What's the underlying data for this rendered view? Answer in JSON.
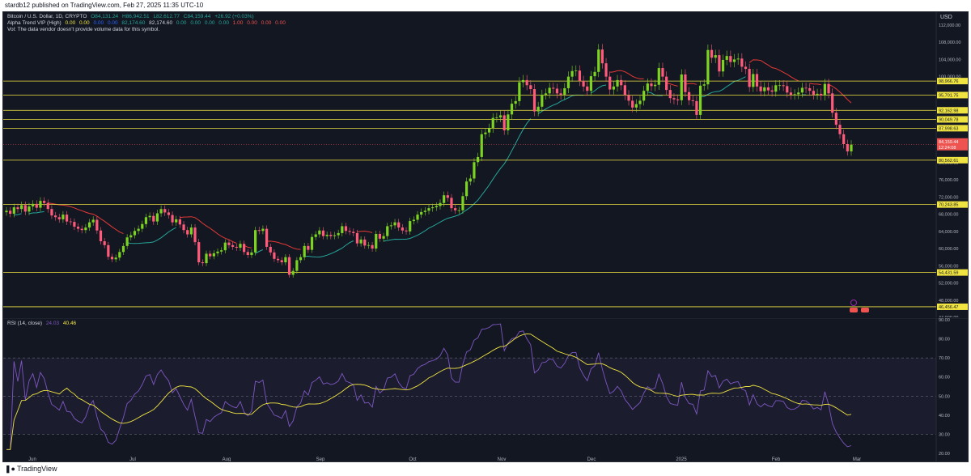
{
  "header": {
    "published_text": "stardb12 published on TradingView.com, Feb 27, 2025 11:35 UTC-10"
  },
  "legend": {
    "symbol": "Bitcoin / U.S. Dollar, 1D, CRYPTO",
    "ohlc": [
      "O84,131.24",
      "H86,942.51",
      "L82,612.77",
      "C84,159.44",
      "+26.92 (+0.03%)"
    ],
    "alpha_name": "Alpha Trend VIP (High)",
    "alpha_values": [
      "0.00",
      "0.00",
      "0.00",
      "0.00",
      "82,174.60",
      "82,174.60",
      "0.00",
      "0.00",
      "0.00",
      "0.00",
      "1.00",
      "0.00",
      "0.00",
      "0.00"
    ],
    "vol_text": "Vol: The data vendor doesn't provide volume data for this symbol.",
    "rsi_name": "RSI (14, close)",
    "rsi_value": "24.03",
    "rsi_ma_value": "40.46"
  },
  "currency_badge": "USD",
  "colors": {
    "background": "#131722",
    "up": "#26a69a",
    "down": "#ef5350",
    "up_bright": "#7cd321",
    "level_line": "#f0e442",
    "trend_up": "#26a69a",
    "trend_down": "#e53935",
    "rsi_line": "#7e57c2",
    "rsi_ma": "#f0e442"
  },
  "footer": {
    "logo_text": "TradingView",
    "logo_icon": "tradingview-logo-icon"
  },
  "chart_data": [
    {
      "type": "candlestick",
      "title": "Bitcoin / U.S. Dollar, 1D, CRYPTO",
      "ylim": [
        44000,
        115000
      ],
      "y_ticks": [
        "112,000.00",
        "108,000.00",
        "104,000.00",
        "100,000.00",
        "96,000.00",
        "92,000.00",
        "88,000.00",
        "84,000.00",
        "80,000.00",
        "76,000.00",
        "72,000.00",
        "68,000.00",
        "64,000.00",
        "60,000.00",
        "56,000.00",
        "52,000.00",
        "48,000.00",
        "44,000.00"
      ],
      "x_labels": [
        "Jun",
        "Jul",
        "Aug",
        "Sep",
        "Oct",
        "Nov",
        "Dec",
        "2025",
        "Feb",
        "Mar"
      ],
      "levels": [
        {
          "value": 98966.76,
          "label": "98,966.76"
        },
        {
          "value": 95701.75,
          "label": "95,701.75"
        },
        {
          "value": 92162.98,
          "label": "92,162.98"
        },
        {
          "value": 90049.78,
          "label": "90,049.78"
        },
        {
          "value": 87998.63,
          "label": "87,998.63"
        },
        {
          "value": 80562.61,
          "label": "80,562.61"
        },
        {
          "value": 70243.85,
          "label": "70,243.85"
        },
        {
          "value": 54431.59,
          "label": "54,431.59"
        },
        {
          "value": 46456.47,
          "label": "46,456.47"
        }
      ],
      "last_price": {
        "value": 84159.44,
        "label": "84,159.44",
        "countdown": "12:24:08"
      },
      "closes": [
        68800,
        68100,
        69600,
        69200,
        70100,
        68600,
        69800,
        70400,
        69500,
        71100,
        70600,
        69200,
        67700,
        67300,
        66800,
        67900,
        66300,
        66200,
        65100,
        64600,
        64300,
        64900,
        66100,
        66700,
        64200,
        61700,
        60800,
        58100,
        57500,
        57900,
        59200,
        60600,
        62600,
        63100,
        64100,
        64600,
        65700,
        67300,
        67600,
        66300,
        68200,
        69200,
        68400,
        67800,
        66100,
        66800,
        65600,
        64300,
        63300,
        64900,
        61500,
        56800,
        56600,
        58800,
        58200,
        58900,
        59300,
        59600,
        61400,
        60800,
        60400,
        60200,
        61100,
        59200,
        58500,
        59100,
        64300,
        64100,
        64600,
        60400,
        59100,
        57600,
        57300,
        56800,
        58000,
        53900,
        54800,
        57300,
        58000,
        60600,
        59700,
        62700,
        63300,
        64200,
        62900,
        63200,
        62900,
        63100,
        63600,
        65200,
        64100,
        63900,
        63600,
        61200,
        62100,
        60700,
        60800,
        60000,
        63400,
        62300,
        62900,
        65200,
        65400,
        66100,
        64900,
        64200,
        64000,
        66400,
        66700,
        67900,
        68500,
        68800,
        69400,
        69600,
        69900,
        70600,
        72400,
        71800,
        69400,
        68900,
        68900,
        72200,
        75600,
        76300,
        80100,
        81300,
        86600,
        87000,
        88000,
        90400,
        90500,
        91000,
        87500,
        91200,
        93700,
        94300,
        98700,
        99200,
        98000,
        97100,
        91900,
        93000,
        95800,
        96100,
        97400,
        97200,
        96100,
        95800,
        97300,
        100000,
        101300,
        101400,
        99000,
        97700,
        96700,
        100100,
        101100,
        106300,
        103100,
        100000,
        97000,
        97700,
        99200,
        98000,
        95700,
        94400,
        92800,
        93600,
        94400,
        96700,
        98400,
        97800,
        98100,
        102000,
        100000,
        96900,
        95000,
        94700,
        94500,
        100500,
        96400,
        94500,
        94300,
        91100,
        97900,
        98200,
        106200,
        104400,
        105000,
        101200,
        103900,
        104800,
        103400,
        104000,
        104200,
        102300,
        101800,
        97600,
        100600,
        97700,
        96600,
        97500,
        96800,
        96500,
        98000,
        98000,
        97800,
        96300,
        95800,
        95900,
        96300,
        97400,
        97300,
        96700,
        95800,
        96000,
        95600,
        98300,
        96100,
        91600,
        88800,
        86600,
        84300,
        82600,
        84200
      ]
    },
    {
      "type": "line",
      "title": "RSI (14, close)",
      "ylim": [
        20,
        90
      ],
      "y_ticks": [
        "90.00",
        "80.00",
        "70.00",
        "60.00",
        "50.00",
        "40.00",
        "30.00",
        "20.00"
      ],
      "series": [
        {
          "name": "RSI",
          "last": 24.03
        },
        {
          "name": "RSI-based MA",
          "last": 40.46
        }
      ]
    }
  ]
}
